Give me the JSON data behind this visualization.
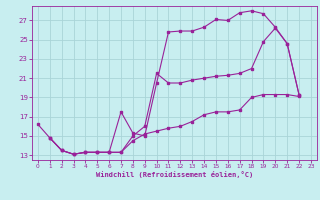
{
  "xlabel": "Windchill (Refroidissement éolien,°C)",
  "bg_color": "#c8eef0",
  "grid_color": "#aad4d8",
  "line_color": "#992299",
  "xlim": [
    -0.5,
    23.5
  ],
  "ylim": [
    12.5,
    28.5
  ],
  "xticks": [
    0,
    1,
    2,
    3,
    4,
    5,
    6,
    7,
    8,
    9,
    10,
    11,
    12,
    13,
    14,
    15,
    16,
    17,
    18,
    19,
    20,
    21,
    22,
    23
  ],
  "yticks": [
    13,
    15,
    17,
    19,
    21,
    23,
    25,
    27
  ],
  "line1_x": [
    0,
    1,
    2,
    3,
    4,
    5,
    6,
    7,
    8,
    9,
    10,
    11,
    12,
    13,
    14,
    15,
    16,
    17,
    18,
    19,
    20,
    21,
    22
  ],
  "line1_y": [
    16.2,
    14.8,
    13.5,
    13.1,
    13.3,
    13.3,
    13.3,
    17.5,
    15.3,
    15.0,
    20.5,
    25.8,
    25.9,
    25.9,
    26.3,
    27.1,
    27.0,
    27.8,
    28.0,
    27.7,
    26.3,
    24.6,
    19.3
  ],
  "line2_x": [
    1,
    2,
    3,
    4,
    5,
    6,
    7,
    8,
    9,
    10,
    11,
    12,
    13,
    14,
    15,
    16,
    17,
    18,
    19,
    20,
    21,
    22
  ],
  "line2_y": [
    14.8,
    13.5,
    13.1,
    13.3,
    13.3,
    13.3,
    13.3,
    15.0,
    16.0,
    21.5,
    20.5,
    20.5,
    20.8,
    21.0,
    21.2,
    21.3,
    21.5,
    22.0,
    24.8,
    26.2,
    24.6,
    19.3
  ],
  "line3_x": [
    1,
    2,
    3,
    4,
    5,
    6,
    7,
    8,
    9,
    10,
    11,
    12,
    13,
    14,
    15,
    16,
    17,
    18,
    19,
    20,
    21,
    22
  ],
  "line3_y": [
    14.8,
    13.5,
    13.1,
    13.3,
    13.3,
    13.3,
    13.3,
    14.5,
    15.2,
    15.5,
    15.8,
    16.0,
    16.5,
    17.2,
    17.5,
    17.5,
    17.7,
    19.0,
    19.3,
    19.3,
    19.3,
    19.1
  ]
}
